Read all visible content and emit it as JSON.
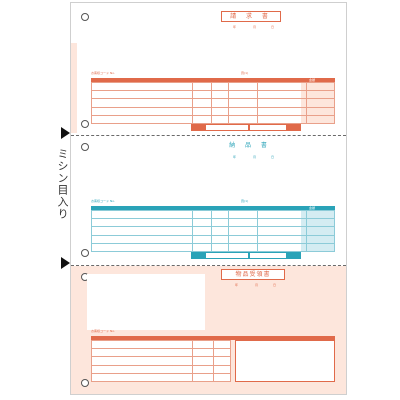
{
  "side_label": "ミシン目入り",
  "colors": {
    "invoice": "#e06a4a",
    "delivery": "#2aa3b8",
    "receipt": "#e06a4a",
    "receipt_bg": "#fde6dc",
    "invoice_bg": "#fde6dc",
    "delivery_bg": "#d4ecf2"
  },
  "sections": {
    "invoice": {
      "title": "請 求 書",
      "date_labels": [
        "年",
        "月",
        "日"
      ],
      "code_label": "お客様コード No.",
      "page_label": "頁(1)",
      "amount_label": "金額"
    },
    "delivery": {
      "title": "納 品 書",
      "date_labels": [
        "年",
        "月",
        "日"
      ],
      "code_label": "お客様コード No.",
      "page_label": "頁(1)",
      "amount_label": "金額"
    },
    "receipt": {
      "title": "物品受領書",
      "date_labels": [
        "年",
        "月",
        "日"
      ],
      "code_label": "お客様コード No."
    }
  }
}
